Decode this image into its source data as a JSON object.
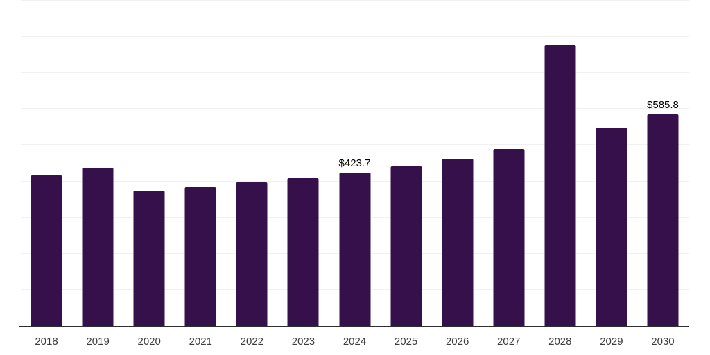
{
  "chart_data": {
    "type": "bar",
    "title": "",
    "xlabel": "",
    "ylabel": "",
    "categories": [
      "2018",
      "2019",
      "2020",
      "2021",
      "2022",
      "2023",
      "2024",
      "2025",
      "2026",
      "2027",
      "2028",
      "2029",
      "2030"
    ],
    "values": [
      416.9,
      437.4,
      373.6,
      383.8,
      396.6,
      409.2,
      423.7,
      441.2,
      462.9,
      489.7,
      777.7,
      549.8,
      585.8
    ],
    "data_labels": [
      "",
      "",
      "",
      "",
      "",
      "",
      "$423.7",
      "",
      "",
      "",
      "",
      "",
      "$585.8"
    ],
    "ylim": [
      0,
      900
    ],
    "gridline_step": 100,
    "grid": "horizontal-only",
    "legend_position": "none",
    "colors": {
      "bar": "#36104B",
      "gridline": "#f1f1f1",
      "axis_line": "#2e2e2e",
      "tick_label": "#3d3d3d",
      "data_label": "#000000",
      "background": "#ffffff"
    }
  }
}
